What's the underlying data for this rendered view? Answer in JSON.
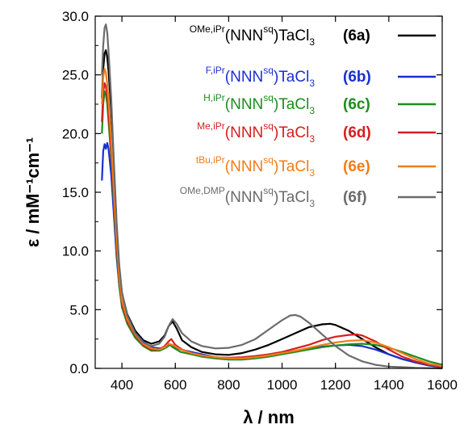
{
  "chart_data": {
    "type": "line",
    "xlabel": "λ / nm",
    "ylabel": "ε / mM⁻¹cm⁻¹",
    "xlim": [
      300,
      1600
    ],
    "ylim": [
      0,
      30
    ],
    "x_ticks": [
      "400",
      "600",
      "800",
      "1000",
      "1200",
      "1400",
      "1600"
    ],
    "y_ticks": [
      "0.0",
      "5.0",
      "10.0",
      "15.0",
      "20.0",
      "25.0",
      "30.0"
    ],
    "legend_position": "top-right",
    "series": [
      {
        "name": "OMe,iPr(NNNsq)TaCl3 (6a)",
        "sup": "OMe,iPr",
        "main": "(NNN",
        "sq": "sq",
        "close": ")TaCl",
        "sub": "3",
        "id": "(6a)",
        "color": "#000000",
        "points": [
          [
            325,
            23
          ],
          [
            330,
            25.5
          ],
          [
            335,
            26.8
          ],
          [
            340,
            27.1
          ],
          [
            345,
            26.5
          ],
          [
            350,
            25.3
          ],
          [
            360,
            22
          ],
          [
            370,
            17
          ],
          [
            380,
            12
          ],
          [
            390,
            8.5
          ],
          [
            400,
            6.4
          ],
          [
            420,
            4.6
          ],
          [
            450,
            3.2
          ],
          [
            480,
            2.4
          ],
          [
            510,
            2.1
          ],
          [
            540,
            2.3
          ],
          [
            560,
            2.8
          ],
          [
            575,
            3.6
          ],
          [
            590,
            4.0
          ],
          [
            605,
            3.4
          ],
          [
            625,
            2.4
          ],
          [
            660,
            1.8
          ],
          [
            700,
            1.4
          ],
          [
            750,
            1.2
          ],
          [
            800,
            1.15
          ],
          [
            850,
            1.3
          ],
          [
            900,
            1.6
          ],
          [
            950,
            2.0
          ],
          [
            1000,
            2.5
          ],
          [
            1050,
            3.0
          ],
          [
            1100,
            3.5
          ],
          [
            1150,
            3.75
          ],
          [
            1180,
            3.8
          ],
          [
            1200,
            3.7
          ],
          [
            1250,
            3.2
          ],
          [
            1300,
            2.5
          ],
          [
            1350,
            1.8
          ],
          [
            1400,
            1.2
          ],
          [
            1450,
            0.8
          ],
          [
            1500,
            0.5
          ],
          [
            1550,
            0.25
          ],
          [
            1600,
            0.1
          ]
        ]
      },
      {
        "name": "F,iPr(NNNsq)TaCl3 (6b)",
        "sup": "F,iPr",
        "main": "(NNN",
        "sq": "sq",
        "close": ")TaCl",
        "sub": "3",
        "id": "(6b)",
        "color": "#1a2fd0",
        "points": [
          [
            325,
            16
          ],
          [
            330,
            18.5
          ],
          [
            335,
            19.1
          ],
          [
            340,
            18.7
          ],
          [
            345,
            19.2
          ],
          [
            350,
            18.7
          ],
          [
            360,
            16.5
          ],
          [
            370,
            13
          ],
          [
            380,
            9.5
          ],
          [
            390,
            7
          ],
          [
            400,
            5.6
          ],
          [
            420,
            4.2
          ],
          [
            450,
            3.0
          ],
          [
            480,
            2.3
          ],
          [
            510,
            1.8
          ],
          [
            540,
            1.7
          ],
          [
            560,
            1.8
          ],
          [
            580,
            2.0
          ],
          [
            590,
            1.9
          ],
          [
            620,
            1.6
          ],
          [
            660,
            1.4
          ],
          [
            700,
            1.2
          ],
          [
            750,
            0.95
          ],
          [
            800,
            0.85
          ],
          [
            850,
            0.85
          ],
          [
            900,
            0.95
          ],
          [
            950,
            1.1
          ],
          [
            1000,
            1.3
          ],
          [
            1050,
            1.5
          ],
          [
            1100,
            1.7
          ],
          [
            1150,
            1.85
          ],
          [
            1200,
            1.95
          ],
          [
            1250,
            2.0
          ],
          [
            1300,
            1.9
          ],
          [
            1350,
            1.6
          ],
          [
            1400,
            1.2
          ],
          [
            1450,
            0.8
          ],
          [
            1500,
            0.5
          ],
          [
            1550,
            0.25
          ],
          [
            1600,
            0.1
          ]
        ]
      },
      {
        "name": "H,iPr(NNNsq)TaCl3 (6c)",
        "sup": "H,iPr",
        "main": "(NNN",
        "sq": "sq",
        "close": ")TaCl",
        "sub": "3",
        "id": "(6c)",
        "color": "#1e8c1e",
        "points": [
          [
            325,
            20
          ],
          [
            330,
            22.5
          ],
          [
            335,
            23.6
          ],
          [
            340,
            23.3
          ],
          [
            345,
            22.5
          ],
          [
            350,
            21
          ],
          [
            360,
            18
          ],
          [
            370,
            14
          ],
          [
            380,
            10
          ],
          [
            390,
            7
          ],
          [
            400,
            5.2
          ],
          [
            420,
            3.8
          ],
          [
            450,
            2.6
          ],
          [
            480,
            1.9
          ],
          [
            510,
            1.5
          ],
          [
            540,
            1.5
          ],
          [
            560,
            1.7
          ],
          [
            580,
            2.0
          ],
          [
            590,
            1.8
          ],
          [
            620,
            1.4
          ],
          [
            660,
            1.2
          ],
          [
            700,
            1.0
          ],
          [
            750,
            0.85
          ],
          [
            800,
            0.75
          ],
          [
            850,
            0.75
          ],
          [
            900,
            0.85
          ],
          [
            950,
            1.0
          ],
          [
            1000,
            1.2
          ],
          [
            1050,
            1.4
          ],
          [
            1100,
            1.6
          ],
          [
            1150,
            1.8
          ],
          [
            1200,
            1.95
          ],
          [
            1250,
            2.05
          ],
          [
            1300,
            2.1
          ],
          [
            1350,
            2.0
          ],
          [
            1400,
            1.75
          ],
          [
            1450,
            1.4
          ],
          [
            1500,
            1.0
          ],
          [
            1550,
            0.6
          ],
          [
            1600,
            0.3
          ]
        ]
      },
      {
        "name": "Me,iPr(NNNsq)TaCl3 (6d)",
        "sup": "Me,iPr",
        "main": "(NNN",
        "sq": "sq",
        "close": ")TaCl",
        "sub": "3",
        "id": "(6d)",
        "color": "#d42020",
        "points": [
          [
            325,
            21
          ],
          [
            330,
            23.5
          ],
          [
            335,
            24.3
          ],
          [
            340,
            24.0
          ],
          [
            345,
            23.2
          ],
          [
            350,
            21.8
          ],
          [
            360,
            18.5
          ],
          [
            370,
            14.5
          ],
          [
            380,
            10.5
          ],
          [
            390,
            7.5
          ],
          [
            400,
            5.5
          ],
          [
            420,
            4.0
          ],
          [
            450,
            2.8
          ],
          [
            480,
            2.0
          ],
          [
            510,
            1.6
          ],
          [
            540,
            1.6
          ],
          [
            560,
            1.9
          ],
          [
            575,
            2.3
          ],
          [
            585,
            2.5
          ],
          [
            600,
            2.0
          ],
          [
            625,
            1.6
          ],
          [
            660,
            1.3
          ],
          [
            700,
            1.1
          ],
          [
            750,
            0.95
          ],
          [
            800,
            0.9
          ],
          [
            850,
            0.95
          ],
          [
            900,
            1.05
          ],
          [
            950,
            1.2
          ],
          [
            1000,
            1.4
          ],
          [
            1050,
            1.7
          ],
          [
            1100,
            2.0
          ],
          [
            1150,
            2.4
          ],
          [
            1200,
            2.7
          ],
          [
            1250,
            2.85
          ],
          [
            1280,
            2.9
          ],
          [
            1300,
            2.8
          ],
          [
            1350,
            2.3
          ],
          [
            1400,
            1.6
          ],
          [
            1450,
            1.0
          ],
          [
            1500,
            0.6
          ],
          [
            1550,
            0.3
          ],
          [
            1600,
            0.15
          ]
        ]
      },
      {
        "name": "tBu,iPr(NNNsq)TaCl3 (6e)",
        "sup": "tBu,iPr",
        "main": "(NNN",
        "sq": "sq",
        "close": ")TaCl",
        "sub": "3",
        "id": "(6e)",
        "color": "#f07d1a",
        "points": [
          [
            325,
            22.5
          ],
          [
            330,
            24.8
          ],
          [
            335,
            25.5
          ],
          [
            340,
            25.2
          ],
          [
            345,
            24.2
          ],
          [
            350,
            22.8
          ],
          [
            360,
            19.5
          ],
          [
            370,
            15
          ],
          [
            380,
            11
          ],
          [
            390,
            7.8
          ],
          [
            400,
            5.8
          ],
          [
            420,
            4.2
          ],
          [
            450,
            2.9
          ],
          [
            480,
            2.1
          ],
          [
            510,
            1.7
          ],
          [
            540,
            1.6
          ],
          [
            560,
            1.8
          ],
          [
            575,
            2.1
          ],
          [
            590,
            2.0
          ],
          [
            620,
            1.6
          ],
          [
            660,
            1.3
          ],
          [
            700,
            1.1
          ],
          [
            750,
            0.95
          ],
          [
            800,
            0.85
          ],
          [
            850,
            0.85
          ],
          [
            900,
            0.95
          ],
          [
            950,
            1.1
          ],
          [
            1000,
            1.3
          ],
          [
            1050,
            1.5
          ],
          [
            1100,
            1.75
          ],
          [
            1150,
            2.0
          ],
          [
            1200,
            2.2
          ],
          [
            1250,
            2.35
          ],
          [
            1300,
            2.4
          ],
          [
            1350,
            2.2
          ],
          [
            1400,
            1.8
          ],
          [
            1450,
            1.3
          ],
          [
            1500,
            0.8
          ],
          [
            1550,
            0.4
          ],
          [
            1600,
            0.2
          ]
        ]
      },
      {
        "name": "OMe,DMP(NNNsq)TaCl3 (6f)",
        "sup": "OMe,DMP",
        "main": "(NNN",
        "sq": "sq",
        "close": ")TaCl",
        "sub": "3",
        "id": "(6f)",
        "color": "#6b6b6b",
        "points": [
          [
            325,
            25
          ],
          [
            330,
            27.5
          ],
          [
            335,
            29
          ],
          [
            340,
            29.3
          ],
          [
            345,
            28.6
          ],
          [
            350,
            27
          ],
          [
            360,
            23
          ],
          [
            370,
            17.5
          ],
          [
            380,
            12.5
          ],
          [
            390,
            8.8
          ],
          [
            400,
            6.5
          ],
          [
            420,
            4.5
          ],
          [
            450,
            3.0
          ],
          [
            480,
            2.2
          ],
          [
            510,
            1.9
          ],
          [
            540,
            2.1
          ],
          [
            560,
            2.7
          ],
          [
            575,
            3.6
          ],
          [
            590,
            4.2
          ],
          [
            605,
            3.8
          ],
          [
            625,
            3.0
          ],
          [
            660,
            2.3
          ],
          [
            700,
            1.9
          ],
          [
            750,
            1.7
          ],
          [
            800,
            1.75
          ],
          [
            850,
            2.0
          ],
          [
            900,
            2.5
          ],
          [
            950,
            3.3
          ],
          [
            1000,
            4.1
          ],
          [
            1030,
            4.5
          ],
          [
            1050,
            4.55
          ],
          [
            1070,
            4.4
          ],
          [
            1100,
            3.9
          ],
          [
            1150,
            2.9
          ],
          [
            1200,
            1.9
          ],
          [
            1250,
            1.1
          ],
          [
            1300,
            0.6
          ],
          [
            1350,
            0.3
          ],
          [
            1400,
            0.15
          ],
          [
            1450,
            0.1
          ],
          [
            1500,
            0.05
          ],
          [
            1600,
            0.0
          ]
        ]
      }
    ]
  }
}
